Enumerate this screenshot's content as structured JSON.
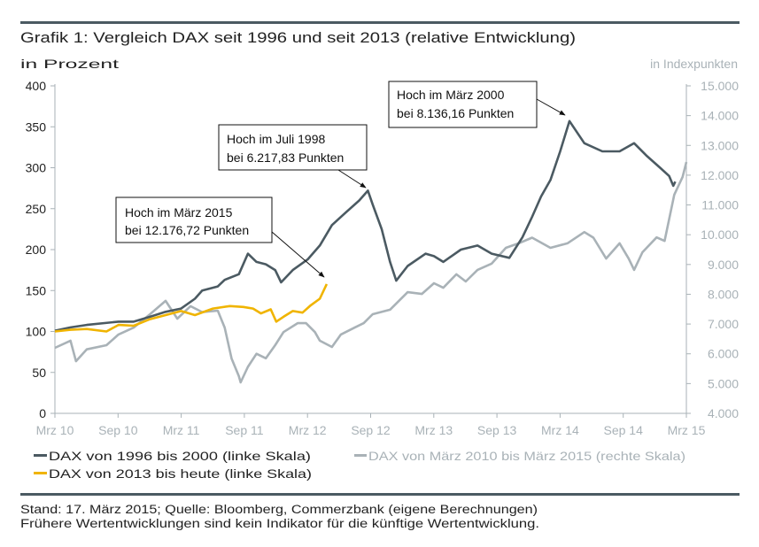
{
  "chart_data": {
    "type": "line",
    "title": "Grafik 1: Vergleich DAX seit 1996 und seit 2013 (relative Entwicklung)",
    "ylabel_left": "in Prozent",
    "ylabel_right": "in Indexpunkten",
    "x_range": [
      "2010-03-01",
      "2015-03-01"
    ],
    "x_ticks": [
      "Mrz 10",
      "Sep 10",
      "Mrz 11",
      "Sep 11",
      "Mrz 12",
      "Sep 12",
      "Mrz 13",
      "Sep 13",
      "Mrz 14",
      "Sep 14",
      "Mrz 15"
    ],
    "ylim_left": [
      0,
      400
    ],
    "yticks_left": [
      "0",
      "50",
      "100",
      "150",
      "200",
      "250",
      "300",
      "350",
      "400"
    ],
    "ylim_right": [
      4000,
      15000
    ],
    "yticks_right": [
      "4.000",
      "5.000",
      "6.000",
      "7.000",
      "8.000",
      "9.000",
      "10.000",
      "11.000",
      "12.000",
      "13.000",
      "14.000",
      "15.000"
    ],
    "grid": false,
    "legend_position": "bottom",
    "series": [
      {
        "name": "DAX von 1996 bis 2000 (linke Skala)",
        "axis": "left",
        "color": "#4b5a62",
        "points": [
          [
            "2010-03-01",
            101
          ],
          [
            "2010-04-15",
            105
          ],
          [
            "2010-06-01",
            108
          ],
          [
            "2010-09-01",
            112
          ],
          [
            "2010-10-15",
            112
          ],
          [
            "2010-12-01",
            118
          ],
          [
            "2011-01-15",
            124
          ],
          [
            "2011-03-01",
            128
          ],
          [
            "2011-04-10",
            140
          ],
          [
            "2011-05-01",
            150
          ],
          [
            "2011-06-15",
            155
          ],
          [
            "2011-07-05",
            163
          ],
          [
            "2011-08-15",
            170
          ],
          [
            "2011-09-10",
            195
          ],
          [
            "2011-10-05",
            185
          ],
          [
            "2011-11-01",
            182
          ],
          [
            "2011-11-28",
            175
          ],
          [
            "2011-12-15",
            160
          ],
          [
            "2012-01-18",
            175
          ],
          [
            "2012-03-01",
            188
          ],
          [
            "2012-04-05",
            205
          ],
          [
            "2012-05-10",
            230
          ],
          [
            "2012-06-18",
            245
          ],
          [
            "2012-07-28",
            260
          ],
          [
            "2012-08-22",
            272
          ],
          [
            "2012-09-05",
            255
          ],
          [
            "2012-10-01",
            225
          ],
          [
            "2012-10-25",
            185
          ],
          [
            "2012-11-12",
            162
          ],
          [
            "2012-12-15",
            180
          ],
          [
            "2013-02-05",
            195
          ],
          [
            "2013-03-01",
            192
          ],
          [
            "2013-03-28",
            185
          ],
          [
            "2013-05-18",
            200
          ],
          [
            "2013-07-05",
            205
          ],
          [
            "2013-08-15",
            195
          ],
          [
            "2013-10-05",
            190
          ],
          [
            "2013-11-12",
            215
          ],
          [
            "2013-12-10",
            240
          ],
          [
            "2014-01-05",
            265
          ],
          [
            "2014-02-01",
            285
          ],
          [
            "2014-03-01",
            320
          ],
          [
            "2014-03-28",
            357
          ],
          [
            "2014-05-10",
            330
          ],
          [
            "2014-07-01",
            320
          ],
          [
            "2014-08-20",
            320
          ],
          [
            "2014-10-01",
            330
          ],
          [
            "2014-11-05",
            315
          ],
          [
            "2014-12-15",
            300
          ],
          [
            "2015-01-10",
            290
          ],
          [
            "2015-01-22",
            278
          ],
          [
            "2015-01-28",
            283
          ]
        ]
      },
      {
        "name": "DAX von März 2010 bis März 2015 (rechte Skala)",
        "axis": "right",
        "color": "#a9b2b7",
        "points": [
          [
            "2010-03-01",
            6200
          ],
          [
            "2010-04-15",
            6440
          ],
          [
            "2010-05-01",
            5750
          ],
          [
            "2010-06-01",
            6150
          ],
          [
            "2010-07-28",
            6290
          ],
          [
            "2010-09-01",
            6650
          ],
          [
            "2010-10-15",
            6880
          ],
          [
            "2010-12-01",
            7330
          ],
          [
            "2011-01-15",
            7780
          ],
          [
            "2011-02-18",
            7180
          ],
          [
            "2011-03-28",
            7600
          ],
          [
            "2011-05-01",
            7400
          ],
          [
            "2011-06-15",
            7450
          ],
          [
            "2011-07-05",
            6880
          ],
          [
            "2011-07-25",
            5840
          ],
          [
            "2011-08-15",
            5250
          ],
          [
            "2011-08-20",
            5040
          ],
          [
            "2011-09-10",
            5560
          ],
          [
            "2011-10-05",
            6000
          ],
          [
            "2011-11-01",
            5850
          ],
          [
            "2011-11-28",
            6290
          ],
          [
            "2011-12-22",
            6730
          ],
          [
            "2012-02-01",
            7030
          ],
          [
            "2012-02-25",
            7030
          ],
          [
            "2012-03-22",
            6730
          ],
          [
            "2012-04-05",
            6440
          ],
          [
            "2012-05-10",
            6230
          ],
          [
            "2012-06-05",
            6650
          ],
          [
            "2012-07-15",
            6880
          ],
          [
            "2012-08-10",
            7030
          ],
          [
            "2012-09-05",
            7330
          ],
          [
            "2012-10-25",
            7480
          ],
          [
            "2012-12-15",
            8070
          ],
          [
            "2013-01-25",
            8010
          ],
          [
            "2013-03-01",
            8370
          ],
          [
            "2013-03-28",
            8220
          ],
          [
            "2013-05-05",
            8670
          ],
          [
            "2013-06-01",
            8430
          ],
          [
            "2013-07-05",
            8820
          ],
          [
            "2013-08-15",
            9030
          ],
          [
            "2013-09-25",
            9560
          ],
          [
            "2013-11-01",
            9710
          ],
          [
            "2013-12-10",
            9900
          ],
          [
            "2014-02-01",
            9560
          ],
          [
            "2014-03-22",
            9710
          ],
          [
            "2014-05-10",
            10090
          ],
          [
            "2014-06-05",
            9900
          ],
          [
            "2014-07-12",
            9200
          ],
          [
            "2014-08-20",
            9710
          ],
          [
            "2014-09-15",
            9200
          ],
          [
            "2014-10-01",
            8820
          ],
          [
            "2014-10-25",
            9410
          ],
          [
            "2014-12-05",
            9910
          ],
          [
            "2014-12-28",
            9790
          ],
          [
            "2015-01-25",
            11340
          ],
          [
            "2015-02-18",
            11940
          ],
          [
            "2015-03-01",
            12440
          ]
        ]
      },
      {
        "name": "DAX von 2013 bis heute (linke Skala)",
        "axis": "left",
        "color": "#f0b400",
        "points": [
          [
            "2010-03-01",
            100
          ],
          [
            "2010-04-15",
            102
          ],
          [
            "2010-06-01",
            103
          ],
          [
            "2010-07-28",
            100
          ],
          [
            "2010-09-01",
            108
          ],
          [
            "2010-10-15",
            107
          ],
          [
            "2010-12-01",
            115
          ],
          [
            "2011-01-15",
            120
          ],
          [
            "2011-03-01",
            125
          ],
          [
            "2011-04-10",
            120
          ],
          [
            "2011-06-01",
            128
          ],
          [
            "2011-07-20",
            131
          ],
          [
            "2011-08-28",
            130
          ],
          [
            "2011-09-25",
            128
          ],
          [
            "2011-10-18",
            122
          ],
          [
            "2011-11-15",
            127
          ],
          [
            "2011-12-01",
            112
          ],
          [
            "2011-12-22",
            118
          ],
          [
            "2012-01-18",
            125
          ],
          [
            "2012-02-15",
            123
          ],
          [
            "2012-03-10",
            132
          ],
          [
            "2012-04-05",
            140
          ],
          [
            "2012-04-25",
            158
          ]
        ]
      }
    ],
    "annotations": [
      {
        "line1": "Hoch im Juli 1998",
        "line2": "bei 6.217,83 Punkten"
      },
      {
        "line1": "Hoch im März 2015",
        "line2": "bei 12.176,72 Punkten"
      },
      {
        "line1": "Hoch im März 2000",
        "line2": "bei 8.136,16 Punkten"
      }
    ]
  },
  "footer": {
    "line1": "Stand: 17. März 2015; Quelle: Bloomberg, Commerzbank (eigene Berechnungen)",
    "line2": "Frühere Wertentwicklungen sind kein Indikator für die künftige Wertentwicklung."
  },
  "colors": {
    "rule": "#4b5a62",
    "axis_right": "#a9b2b7",
    "axis_left": "#222222"
  }
}
